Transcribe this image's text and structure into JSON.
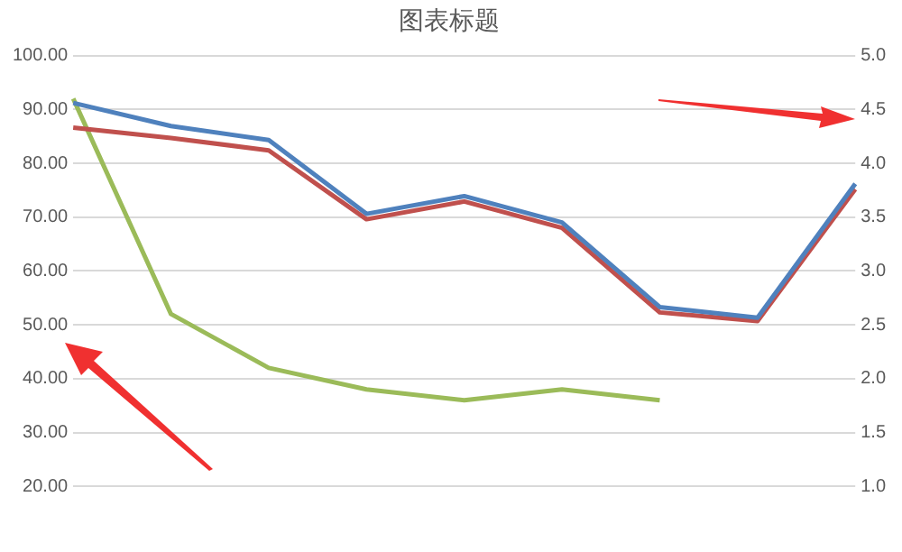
{
  "chart_data": {
    "type": "line",
    "title": "图表标题",
    "categories": [
      null,
      null,
      null,
      null,
      null,
      null,
      null,
      null,
      null
    ],
    "series": [
      {
        "color": "#4f81bd",
        "values": [
          91.2,
          86.9,
          84.3,
          70.6,
          73.9,
          69.0,
          53.3,
          51.3,
          76.2
        ]
      },
      {
        "color": "#c0504d",
        "values": [
          86.6,
          84.7,
          82.4,
          69.6,
          72.9,
          68.0,
          52.3,
          50.7,
          75.2
        ]
      },
      {
        "color": "#9bbb59",
        "axis": "y2",
        "values": [
          4.6,
          2.6,
          2.1,
          1.9,
          1.8,
          1.9,
          1.8,
          null,
          null
        ]
      }
    ],
    "ylim": [
      20,
      100
    ],
    "yticks": [
      {
        "value": 20,
        "label": "20.00"
      },
      {
        "value": 30,
        "label": "30.00"
      },
      {
        "value": 40,
        "label": "40.00"
      },
      {
        "value": 50,
        "label": "50.00"
      },
      {
        "value": 60,
        "label": "60.00"
      },
      {
        "value": 70,
        "label": "70.00"
      },
      {
        "value": 80,
        "label": "80.00"
      },
      {
        "value": 90,
        "label": "90.00"
      },
      {
        "value": 100,
        "label": "100.00"
      }
    ],
    "y2lim": [
      1,
      5
    ],
    "y2ticks": [
      {
        "value": 1,
        "label": "1.0"
      },
      {
        "value": 1.5,
        "label": "1.5"
      },
      {
        "value": 2,
        "label": "2.0"
      },
      {
        "value": 2.5,
        "label": "2.5"
      },
      {
        "value": 3,
        "label": "3.0"
      },
      {
        "value": 3.5,
        "label": "3.5"
      },
      {
        "value": 4,
        "label": "4.0"
      },
      {
        "value": 4.5,
        "label": "4.5"
      },
      {
        "value": 5,
        "label": "5.0"
      }
    ],
    "grid": "y",
    "legend": false,
    "marker": "none",
    "line_style": "solid"
  }
}
